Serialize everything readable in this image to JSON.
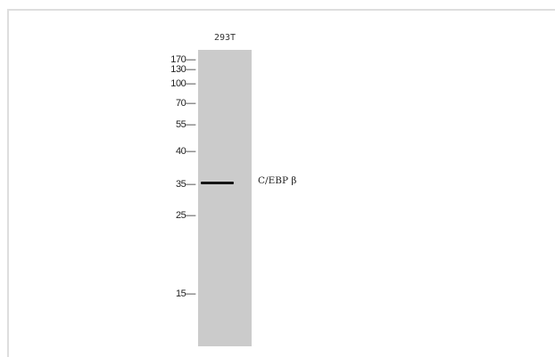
{
  "blot": {
    "lane_label": "293T",
    "markers": [
      "170—",
      "130—",
      "100—",
      "70—",
      "55—",
      "40—",
      "35—",
      "25—",
      "15—"
    ],
    "band_label": "C/EBP β"
  }
}
